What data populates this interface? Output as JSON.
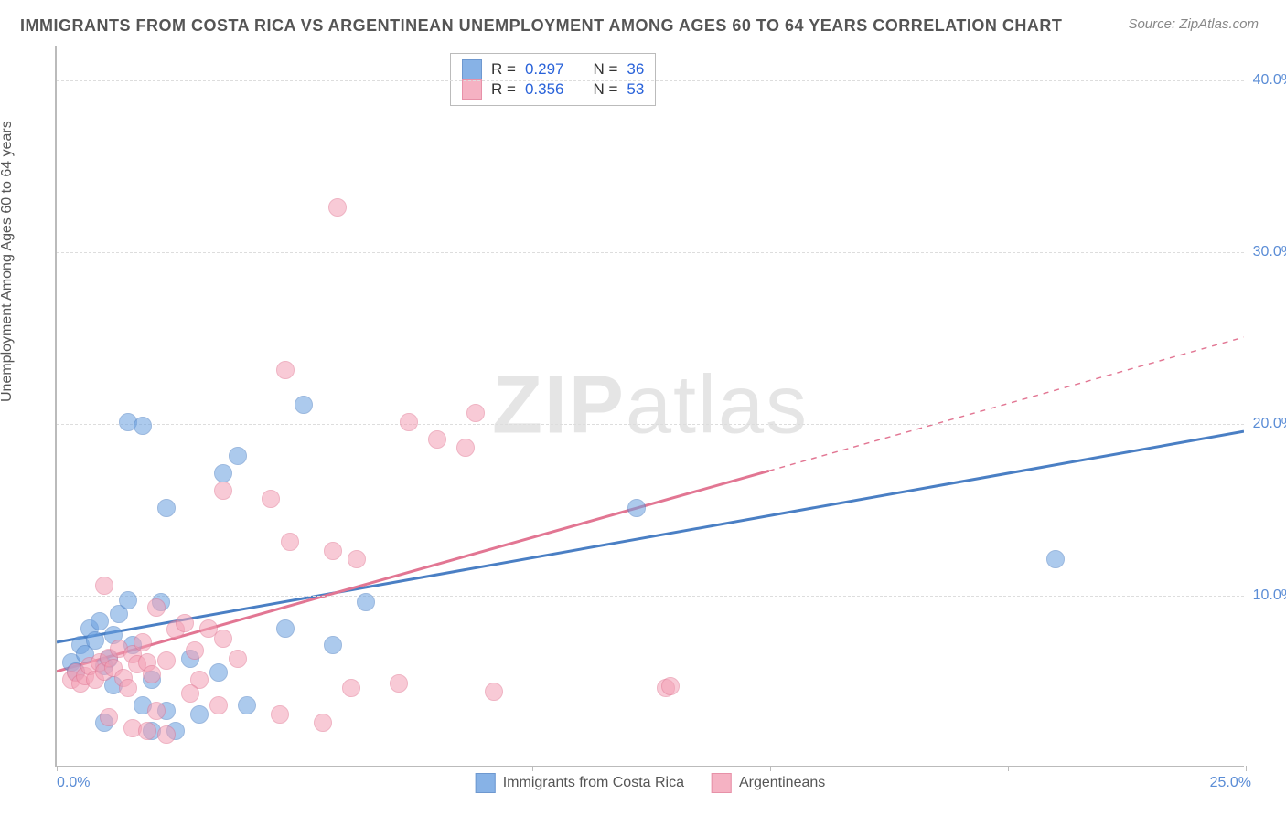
{
  "title": "IMMIGRANTS FROM COSTA RICA VS ARGENTINEAN UNEMPLOYMENT AMONG AGES 60 TO 64 YEARS CORRELATION CHART",
  "source": "Source: ZipAtlas.com",
  "watermark_prefix": "ZIP",
  "watermark_suffix": "atlas",
  "chart": {
    "type": "scatter",
    "background_color": "#ffffff",
    "grid_color": "#dddddd",
    "axis_color": "#bbbbbb",
    "ylabel": "Unemployment Among Ages 60 to 64 years",
    "label_fontsize": 16,
    "title_fontsize": 18,
    "xlim": [
      0,
      25
    ],
    "ylim": [
      0,
      42
    ],
    "y_ticks": [
      10,
      20,
      30,
      40
    ],
    "y_tick_labels": [
      "10.0%",
      "20.0%",
      "30.0%",
      "40.0%"
    ],
    "x_ticks": [
      0,
      5,
      10,
      15,
      20,
      25
    ],
    "x_tick_min_label": "0.0%",
    "x_tick_max_label": "25.0%",
    "marker_size": 20,
    "marker_opacity": 0.55,
    "line_width": 3,
    "series": [
      {
        "name": "Immigrants from Costa Rica",
        "color": "#6aa0e0",
        "border_color": "#4a7fc4",
        "r": "0.297",
        "n": "36",
        "trend": {
          "x1": 0,
          "y1": 7.2,
          "x2": 25,
          "y2": 19.5,
          "dashed_from_x": 25
        },
        "points": [
          [
            0.3,
            6.0
          ],
          [
            0.4,
            5.5
          ],
          [
            0.5,
            7.0
          ],
          [
            0.6,
            6.5
          ],
          [
            0.7,
            8.0
          ],
          [
            0.8,
            7.3
          ],
          [
            0.9,
            8.4
          ],
          [
            1.0,
            5.8
          ],
          [
            1.1,
            6.2
          ],
          [
            1.2,
            7.6
          ],
          [
            1.3,
            8.8
          ],
          [
            1.5,
            9.6
          ],
          [
            1.6,
            7.0
          ],
          [
            1.8,
            3.5
          ],
          [
            1.0,
            2.5
          ],
          [
            2.0,
            2.0
          ],
          [
            2.2,
            9.5
          ],
          [
            2.5,
            2.0
          ],
          [
            2.3,
            3.2
          ],
          [
            2.3,
            15.0
          ],
          [
            1.5,
            20.0
          ],
          [
            1.8,
            19.8
          ],
          [
            3.5,
            17.0
          ],
          [
            3.8,
            18.0
          ],
          [
            5.2,
            21.0
          ],
          [
            3.0,
            3.0
          ],
          [
            4.0,
            3.5
          ],
          [
            4.8,
            8.0
          ],
          [
            5.8,
            7.0
          ],
          [
            6.5,
            9.5
          ],
          [
            12.2,
            15.0
          ],
          [
            21.0,
            12.0
          ],
          [
            2.0,
            5.0
          ],
          [
            2.8,
            6.2
          ],
          [
            3.4,
            5.4
          ],
          [
            1.2,
            4.7
          ]
        ]
      },
      {
        "name": "Argentineans",
        "color": "#f3a0b5",
        "border_color": "#e27693",
        "r": "0.356",
        "n": "53",
        "trend": {
          "x1": 0,
          "y1": 5.5,
          "x2": 25,
          "y2": 25.0,
          "dashed_from_x": 15
        },
        "points": [
          [
            0.3,
            5.0
          ],
          [
            0.4,
            5.4
          ],
          [
            0.5,
            4.8
          ],
          [
            0.6,
            5.2
          ],
          [
            0.7,
            5.8
          ],
          [
            0.8,
            5.0
          ],
          [
            0.9,
            6.0
          ],
          [
            1.0,
            5.5
          ],
          [
            1.1,
            6.3
          ],
          [
            1.2,
            5.7
          ],
          [
            1.3,
            6.8
          ],
          [
            1.4,
            5.1
          ],
          [
            1.5,
            4.5
          ],
          [
            1.6,
            6.5
          ],
          [
            1.7,
            5.9
          ],
          [
            1.8,
            7.2
          ],
          [
            1.9,
            6.0
          ],
          [
            2.0,
            5.3
          ],
          [
            2.1,
            9.2
          ],
          [
            2.3,
            6.1
          ],
          [
            2.5,
            7.9
          ],
          [
            2.7,
            8.3
          ],
          [
            2.9,
            6.7
          ],
          [
            3.0,
            5.0
          ],
          [
            3.2,
            8.0
          ],
          [
            3.5,
            7.4
          ],
          [
            3.8,
            6.2
          ],
          [
            4.7,
            3.0
          ],
          [
            4.8,
            23.0
          ],
          [
            4.9,
            13.0
          ],
          [
            3.5,
            16.0
          ],
          [
            5.6,
            2.5
          ],
          [
            5.8,
            12.5
          ],
          [
            6.2,
            4.5
          ],
          [
            6.3,
            12.0
          ],
          [
            7.2,
            4.8
          ],
          [
            7.4,
            20.0
          ],
          [
            8.0,
            19.0
          ],
          [
            8.8,
            20.5
          ],
          [
            8.6,
            18.5
          ],
          [
            9.2,
            4.3
          ],
          [
            12.8,
            4.5
          ],
          [
            12.9,
            4.6
          ],
          [
            1.1,
            2.8
          ],
          [
            1.6,
            2.2
          ],
          [
            1.9,
            2.0
          ],
          [
            2.3,
            1.8
          ],
          [
            2.1,
            3.2
          ],
          [
            2.8,
            4.2
          ],
          [
            5.9,
            32.5
          ],
          [
            4.5,
            15.5
          ],
          [
            1.0,
            10.5
          ],
          [
            3.4,
            3.5
          ]
        ]
      }
    ]
  },
  "legend_r_label": "R =",
  "legend_n_label": "N ="
}
